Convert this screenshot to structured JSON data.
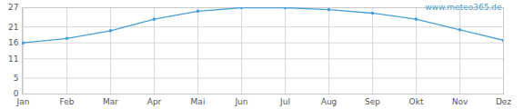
{
  "chart_data": {
    "type": "line",
    "annotation": "www.meteo365.de",
    "categories": [
      "Jan",
      "Feb",
      "Mar",
      "Apr",
      "Mai",
      "Jun",
      "Jul",
      "Aug",
      "Sep",
      "Okt",
      "Nov",
      "Dez"
    ],
    "values": [
      16.0,
      17.4,
      19.8,
      23.4,
      25.9,
      27.0,
      27.0,
      26.4,
      25.3,
      23.4,
      20.1,
      16.8
    ],
    "color": "#4a9fd5",
    "marker": "circle",
    "ylim": [
      0,
      27
    ],
    "yticks": [
      0,
      5,
      11,
      16,
      21,
      27
    ],
    "grid": true
  }
}
